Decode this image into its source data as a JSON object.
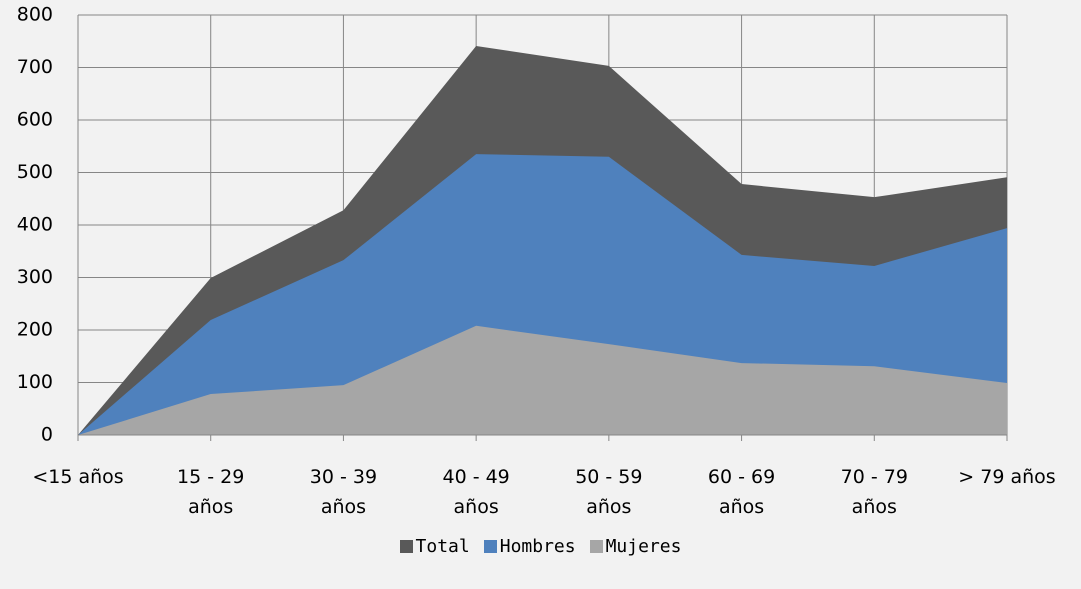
{
  "chart_data": {
    "type": "area",
    "categories": [
      "<15 años",
      "15 - 29 años",
      "30 - 39 años",
      "40 - 49 años",
      "50 - 59 años",
      "60 - 69 años",
      "70 - 79 años",
      "> 79  años"
    ],
    "series": [
      {
        "name": "Total",
        "color": "#595959",
        "values": [
          0,
          299,
          428,
          741,
          703,
          478,
          453,
          491
        ]
      },
      {
        "name": "Hombres",
        "color": "#4f81bd",
        "values": [
          0,
          219,
          333,
          535,
          530,
          343,
          322,
          394
        ]
      },
      {
        "name": "Mujeres",
        "color": "#a6a6a6",
        "values": [
          0,
          78,
          95,
          208,
          173,
          137,
          131,
          99
        ]
      }
    ],
    "ylim": [
      0,
      800
    ],
    "yticks": [
      0,
      100,
      200,
      300,
      400,
      500,
      600,
      700,
      800
    ],
    "grid": true,
    "legend": "bottom"
  }
}
